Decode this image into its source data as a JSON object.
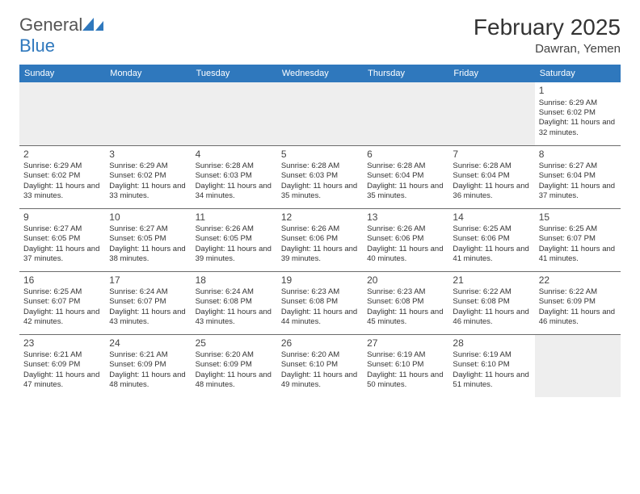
{
  "logo": {
    "word1": "General",
    "word2": "Blue"
  },
  "title": "February 2025",
  "location": "Dawran, Yemen",
  "colors": {
    "accent": "#2f78bd",
    "blank": "#eeeeee",
    "rule": "#6b6b6b"
  },
  "weekdays": [
    "Sunday",
    "Monday",
    "Tuesday",
    "Wednesday",
    "Thursday",
    "Friday",
    "Saturday"
  ],
  "labels": {
    "sunrise": "Sunrise:",
    "sunset": "Sunset:",
    "daylight_prefix": "Daylight:"
  },
  "weeks": [
    [
      null,
      null,
      null,
      null,
      null,
      null,
      {
        "d": "1",
        "sr": "6:29 AM",
        "ss": "6:02 PM",
        "dl": "11 hours and 32 minutes."
      }
    ],
    [
      {
        "d": "2",
        "sr": "6:29 AM",
        "ss": "6:02 PM",
        "dl": "11 hours and 33 minutes."
      },
      {
        "d": "3",
        "sr": "6:29 AM",
        "ss": "6:02 PM",
        "dl": "11 hours and 33 minutes."
      },
      {
        "d": "4",
        "sr": "6:28 AM",
        "ss": "6:03 PM",
        "dl": "11 hours and 34 minutes."
      },
      {
        "d": "5",
        "sr": "6:28 AM",
        "ss": "6:03 PM",
        "dl": "11 hours and 35 minutes."
      },
      {
        "d": "6",
        "sr": "6:28 AM",
        "ss": "6:04 PM",
        "dl": "11 hours and 35 minutes."
      },
      {
        "d": "7",
        "sr": "6:28 AM",
        "ss": "6:04 PM",
        "dl": "11 hours and 36 minutes."
      },
      {
        "d": "8",
        "sr": "6:27 AM",
        "ss": "6:04 PM",
        "dl": "11 hours and 37 minutes."
      }
    ],
    [
      {
        "d": "9",
        "sr": "6:27 AM",
        "ss": "6:05 PM",
        "dl": "11 hours and 37 minutes."
      },
      {
        "d": "10",
        "sr": "6:27 AM",
        "ss": "6:05 PM",
        "dl": "11 hours and 38 minutes."
      },
      {
        "d": "11",
        "sr": "6:26 AM",
        "ss": "6:05 PM",
        "dl": "11 hours and 39 minutes."
      },
      {
        "d": "12",
        "sr": "6:26 AM",
        "ss": "6:06 PM",
        "dl": "11 hours and 39 minutes."
      },
      {
        "d": "13",
        "sr": "6:26 AM",
        "ss": "6:06 PM",
        "dl": "11 hours and 40 minutes."
      },
      {
        "d": "14",
        "sr": "6:25 AM",
        "ss": "6:06 PM",
        "dl": "11 hours and 41 minutes."
      },
      {
        "d": "15",
        "sr": "6:25 AM",
        "ss": "6:07 PM",
        "dl": "11 hours and 41 minutes."
      }
    ],
    [
      {
        "d": "16",
        "sr": "6:25 AM",
        "ss": "6:07 PM",
        "dl": "11 hours and 42 minutes."
      },
      {
        "d": "17",
        "sr": "6:24 AM",
        "ss": "6:07 PM",
        "dl": "11 hours and 43 minutes."
      },
      {
        "d": "18",
        "sr": "6:24 AM",
        "ss": "6:08 PM",
        "dl": "11 hours and 43 minutes."
      },
      {
        "d": "19",
        "sr": "6:23 AM",
        "ss": "6:08 PM",
        "dl": "11 hours and 44 minutes."
      },
      {
        "d": "20",
        "sr": "6:23 AM",
        "ss": "6:08 PM",
        "dl": "11 hours and 45 minutes."
      },
      {
        "d": "21",
        "sr": "6:22 AM",
        "ss": "6:08 PM",
        "dl": "11 hours and 46 minutes."
      },
      {
        "d": "22",
        "sr": "6:22 AM",
        "ss": "6:09 PM",
        "dl": "11 hours and 46 minutes."
      }
    ],
    [
      {
        "d": "23",
        "sr": "6:21 AM",
        "ss": "6:09 PM",
        "dl": "11 hours and 47 minutes."
      },
      {
        "d": "24",
        "sr": "6:21 AM",
        "ss": "6:09 PM",
        "dl": "11 hours and 48 minutes."
      },
      {
        "d": "25",
        "sr": "6:20 AM",
        "ss": "6:09 PM",
        "dl": "11 hours and 48 minutes."
      },
      {
        "d": "26",
        "sr": "6:20 AM",
        "ss": "6:10 PM",
        "dl": "11 hours and 49 minutes."
      },
      {
        "d": "27",
        "sr": "6:19 AM",
        "ss": "6:10 PM",
        "dl": "11 hours and 50 minutes."
      },
      {
        "d": "28",
        "sr": "6:19 AM",
        "ss": "6:10 PM",
        "dl": "11 hours and 51 minutes."
      },
      null
    ]
  ]
}
